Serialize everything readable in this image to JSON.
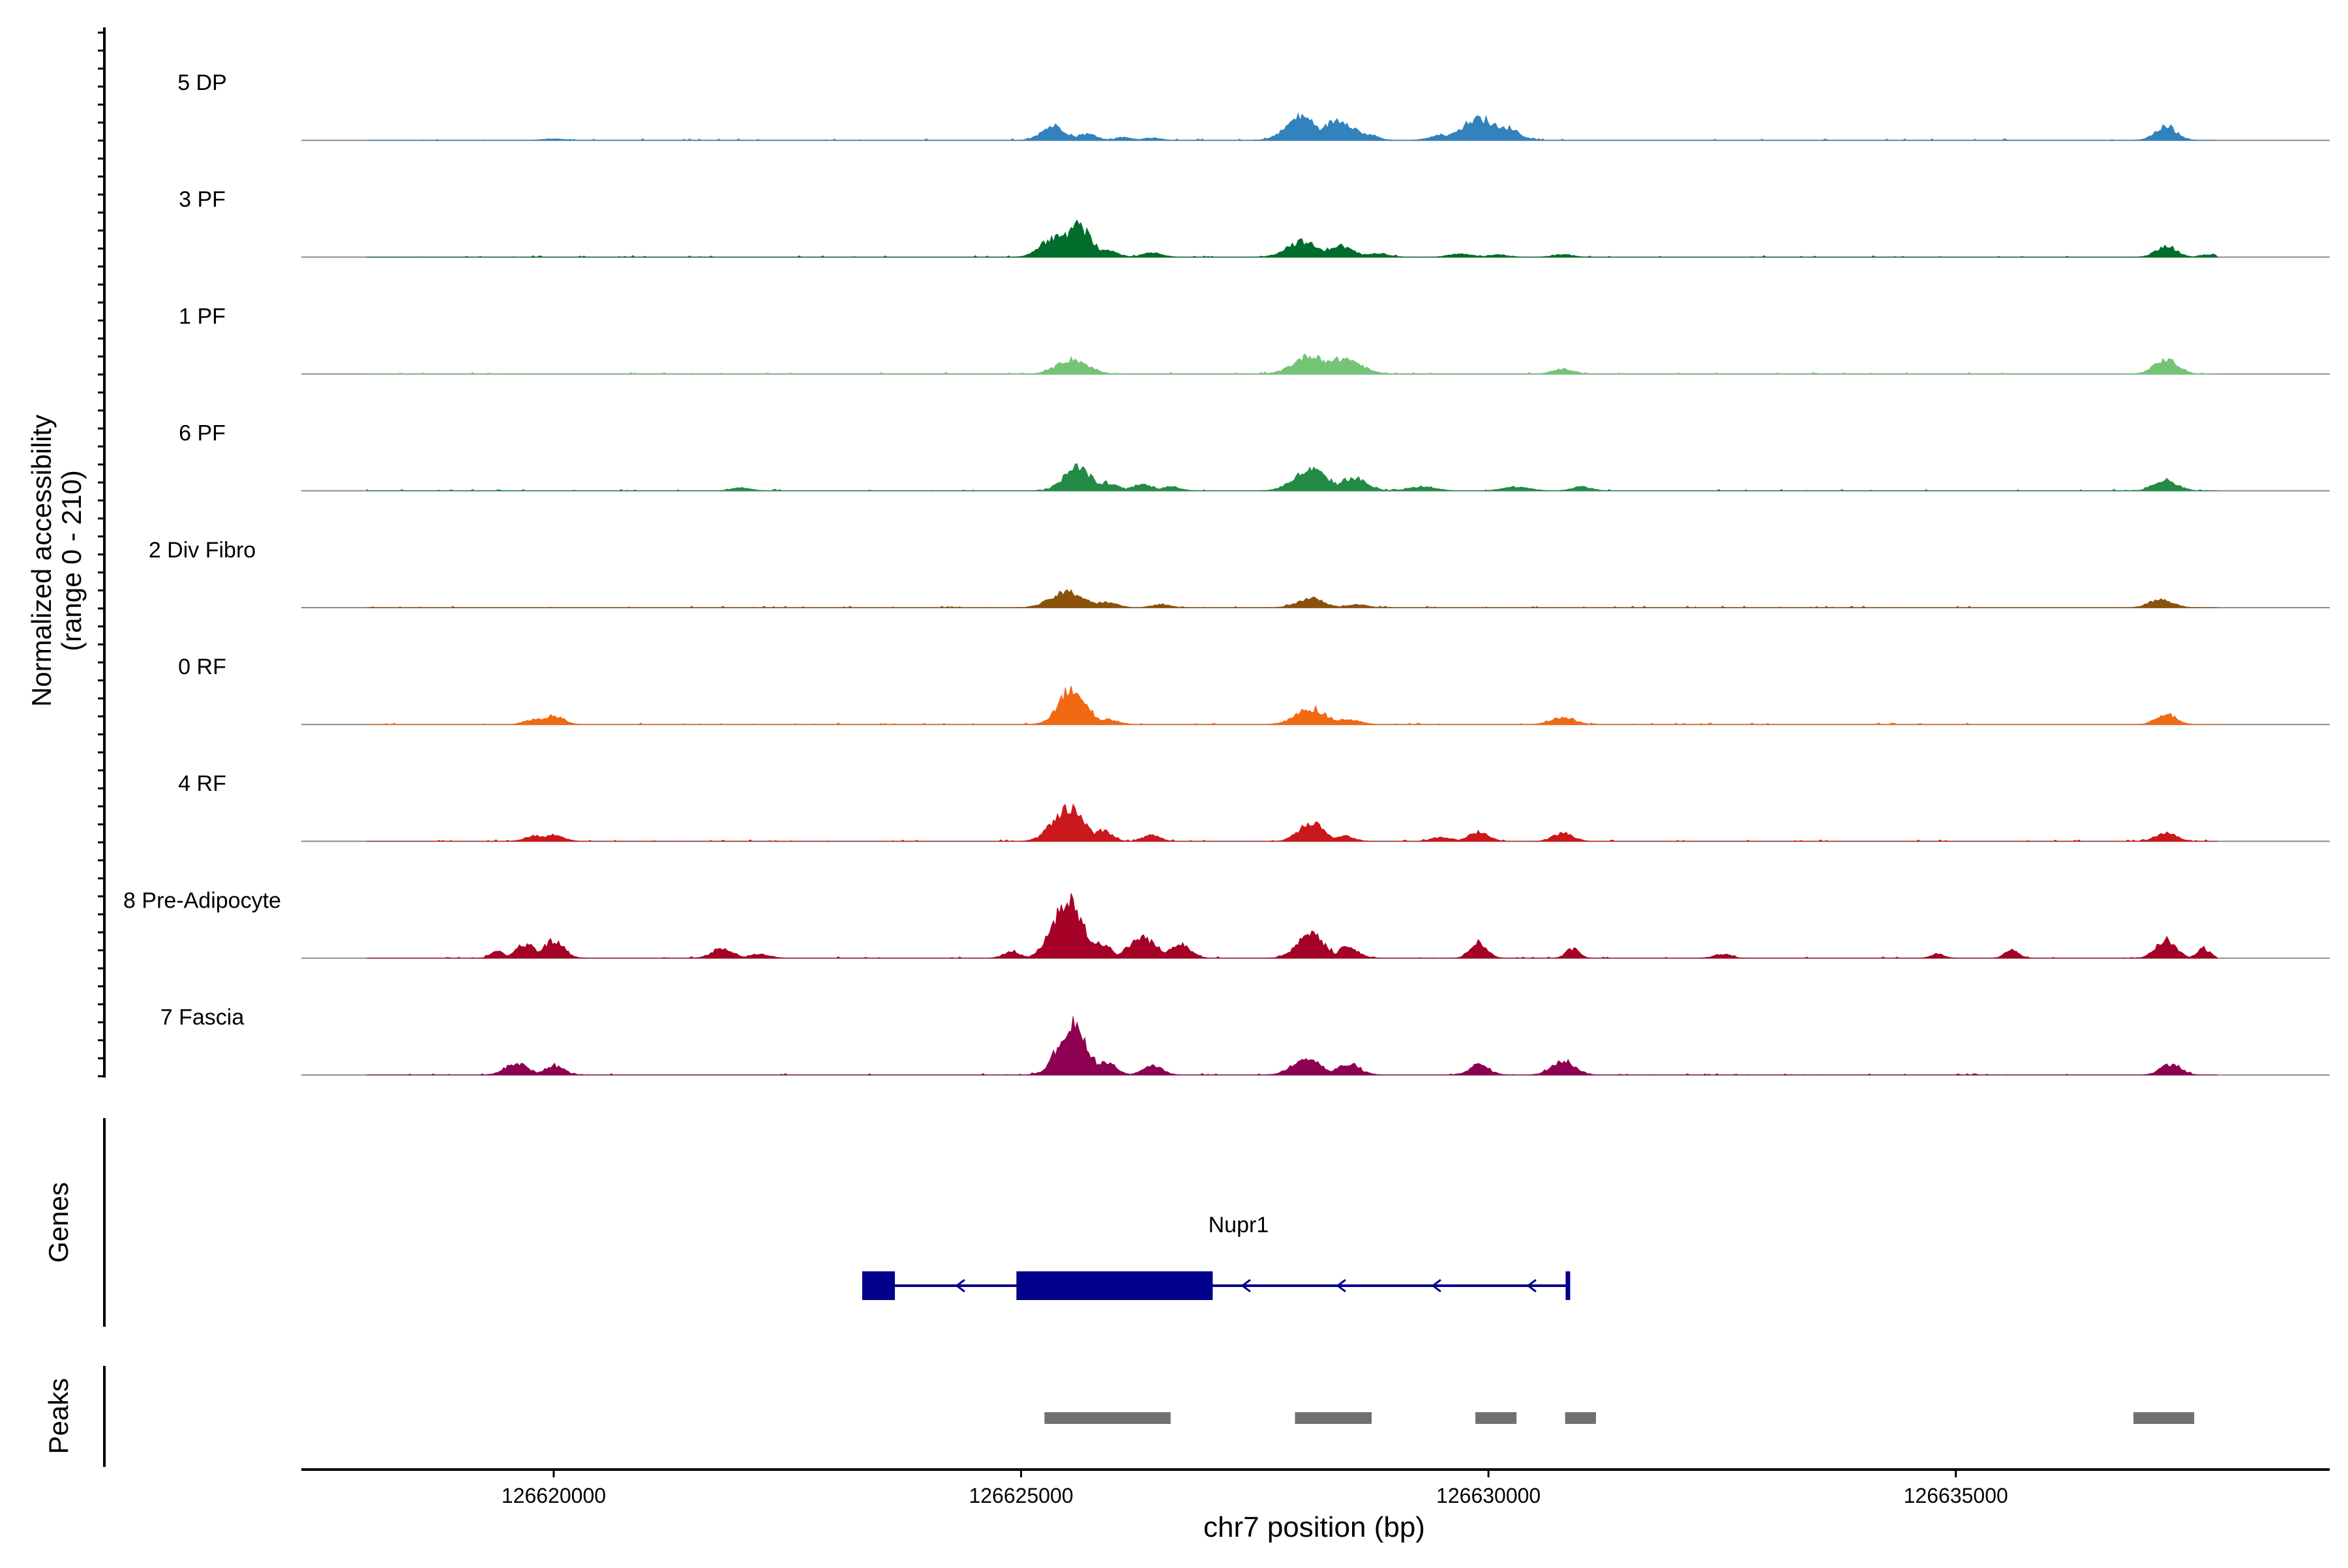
{
  "chart_data": {
    "type": "area",
    "title": "",
    "region": "chr7:126617300-126639000",
    "xlim": [
      126617300,
      126639000
    ],
    "xlabel": "chr7 position (bp)",
    "x_ticks": [
      126620000,
      126625000,
      126630000,
      126635000
    ],
    "x_tick_labels": [
      "126620000",
      "126625000",
      "126630000",
      "126635000"
    ],
    "ylabel_line1": "Normalized accessibility",
    "ylabel_line2": "(range 0 - 210)",
    "ylim": [
      0,
      210
    ],
    "baseline_color": "#8c8c8c",
    "tracks": [
      {
        "name": "5 DP",
        "color": "#3182bd",
        "peaks": [
          [
            126620000,
            3,
            60
          ],
          [
            126625350,
            28,
            70
          ],
          [
            126625700,
            12,
            60
          ],
          [
            126626100,
            6,
            50
          ],
          [
            126626400,
            5,
            50
          ],
          [
            126628000,
            45,
            90
          ],
          [
            126628400,
            40,
            90
          ],
          [
            126628700,
            12,
            60
          ],
          [
            126629500,
            10,
            70
          ],
          [
            126629900,
            42,
            100
          ],
          [
            126630200,
            25,
            70
          ],
          [
            126637250,
            26,
            65
          ]
        ]
      },
      {
        "name": "3 PF",
        "color": "#006d2c",
        "peaks": [
          [
            126625350,
            35,
            80
          ],
          [
            126625600,
            60,
            80
          ],
          [
            126625900,
            12,
            70
          ],
          [
            126626400,
            8,
            60
          ],
          [
            126628000,
            30,
            90
          ],
          [
            126628400,
            22,
            80
          ],
          [
            126628800,
            8,
            70
          ],
          [
            126629700,
            6,
            70
          ],
          [
            126630100,
            5,
            60
          ],
          [
            126630800,
            5,
            60
          ],
          [
            126637250,
            22,
            60
          ],
          [
            126637700,
            5,
            50
          ]
        ]
      },
      {
        "name": "1 PF",
        "color": "#74c476",
        "peaks": [
          [
            126625550,
            28,
            90
          ],
          [
            126628100,
            35,
            100
          ],
          [
            126628450,
            30,
            100
          ],
          [
            126630800,
            10,
            60
          ],
          [
            126637250,
            28,
            70
          ]
        ]
      },
      {
        "name": "6 PF",
        "color": "#238b45",
        "peaks": [
          [
            126622000,
            6,
            60
          ],
          [
            126625600,
            45,
            80
          ],
          [
            126625900,
            15,
            70
          ],
          [
            126626300,
            12,
            60
          ],
          [
            126626600,
            8,
            60
          ],
          [
            126628100,
            40,
            100
          ],
          [
            126628550,
            25,
            80
          ],
          [
            126629300,
            8,
            80
          ],
          [
            126630300,
            8,
            80
          ],
          [
            126631000,
            8,
            60
          ],
          [
            126637250,
            20,
            70
          ]
        ]
      },
      {
        "name": "2 Div Fibro",
        "color": "#8c510a",
        "peaks": [
          [
            126625500,
            30,
            100
          ],
          [
            126625900,
            10,
            70
          ],
          [
            126626500,
            6,
            60
          ],
          [
            126628100,
            18,
            80
          ],
          [
            126628600,
            6,
            60
          ],
          [
            126637200,
            15,
            70
          ]
        ]
      },
      {
        "name": "0 RF",
        "color": "#f16913",
        "peaks": [
          [
            126619800,
            10,
            60
          ],
          [
            126620000,
            18,
            60
          ],
          [
            126625550,
            70,
            80
          ],
          [
            126625900,
            10,
            70
          ],
          [
            126628100,
            30,
            90
          ],
          [
            126628500,
            10,
            70
          ],
          [
            126630800,
            14,
            70
          ],
          [
            126637250,
            20,
            60
          ]
        ]
      },
      {
        "name": "4 RF",
        "color": "#cb181d",
        "peaks": [
          [
            126619800,
            10,
            60
          ],
          [
            126620000,
            12,
            60
          ],
          [
            126625500,
            65,
            90
          ],
          [
            126625850,
            20,
            60
          ],
          [
            126626400,
            12,
            50
          ],
          [
            126628100,
            38,
            70
          ],
          [
            126628450,
            10,
            60
          ],
          [
            126629500,
            8,
            60
          ],
          [
            126629900,
            18,
            60
          ],
          [
            126630800,
            16,
            60
          ],
          [
            126637250,
            18,
            60
          ]
        ]
      },
      {
        "name": "8 Pre-Adipocyte",
        "color": "#a50026",
        "peaks": [
          [
            126619400,
            12,
            40
          ],
          [
            126619700,
            25,
            60
          ],
          [
            126620000,
            35,
            60
          ],
          [
            126621800,
            20,
            60
          ],
          [
            126622200,
            8,
            60
          ],
          [
            126624900,
            12,
            50
          ],
          [
            126625500,
            110,
            90
          ],
          [
            126625850,
            30,
            60
          ],
          [
            126626300,
            40,
            80
          ],
          [
            126626700,
            30,
            60
          ],
          [
            126628100,
            45,
            80
          ],
          [
            126628500,
            22,
            60
          ],
          [
            126629900,
            30,
            50
          ],
          [
            126630900,
            18,
            40
          ],
          [
            126632500,
            8,
            50
          ],
          [
            126634800,
            8,
            40
          ],
          [
            126635600,
            16,
            40
          ],
          [
            126637250,
            35,
            60
          ],
          [
            126637650,
            18,
            40
          ]
        ]
      },
      {
        "name": "7 Fascia",
        "color": "#8e0152",
        "peaks": [
          [
            126619600,
            22,
            70
          ],
          [
            126620000,
            18,
            60
          ],
          [
            126625550,
            95,
            85
          ],
          [
            126625900,
            25,
            60
          ],
          [
            126626400,
            18,
            60
          ],
          [
            126628050,
            35,
            80
          ],
          [
            126628500,
            20,
            70
          ],
          [
            126629900,
            20,
            60
          ],
          [
            126630800,
            28,
            70
          ],
          [
            126637300,
            22,
            60
          ]
        ]
      }
    ],
    "genes": [
      {
        "name": "Nupr1",
        "strand": "-",
        "start": 126623300,
        "end": 126630850,
        "exons": [
          [
            126623300,
            126623650
          ],
          [
            126624950,
            126627050
          ]
        ]
      }
    ],
    "peaks_track": [
      [
        126625250,
        126626600
      ],
      [
        126627930,
        126628750
      ],
      [
        126629860,
        126630300
      ],
      [
        126630820,
        126631150
      ],
      [
        126636900,
        126637550
      ]
    ],
    "side_labels": {
      "genes": "Genes",
      "peaks": "Peaks"
    },
    "colors": {
      "gene": "#00008b",
      "peak_bar": "#707070",
      "axis": "#000000"
    }
  }
}
